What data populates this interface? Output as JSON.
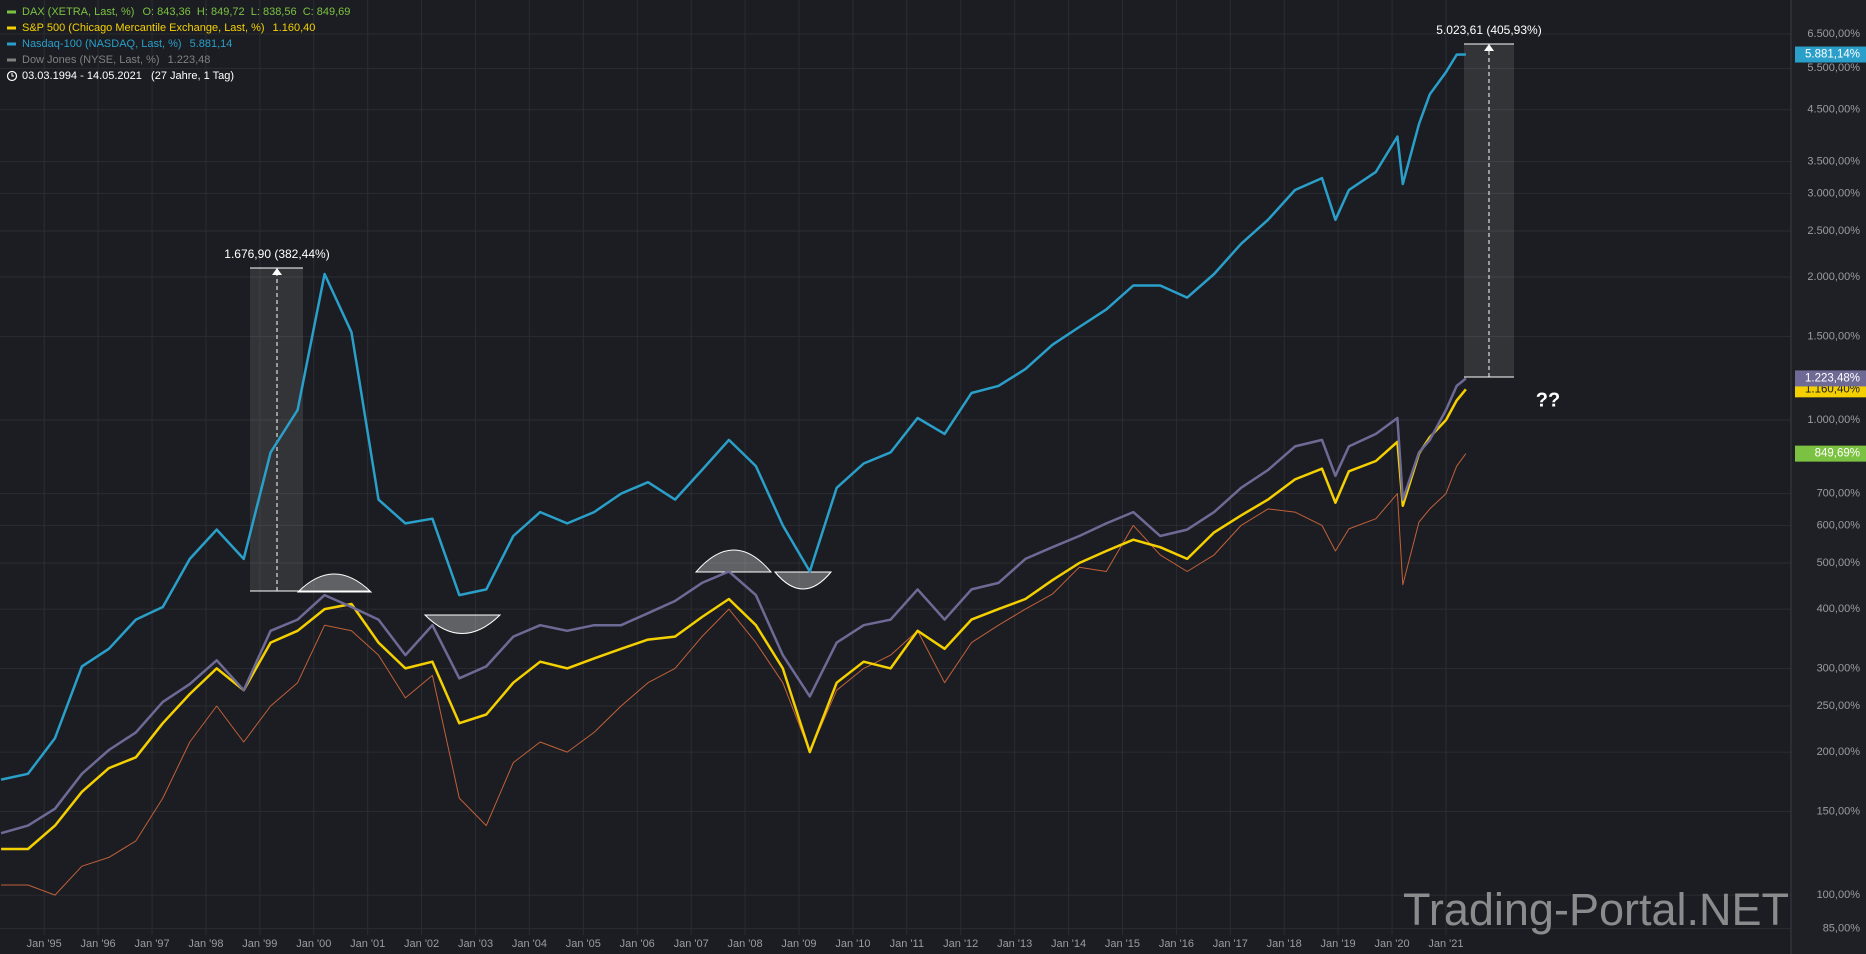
{
  "chart_data": {
    "type": "line",
    "log_scale": true,
    "grid": true,
    "x": [
      1994.2,
      1994.7,
      1995.2,
      1995.7,
      1996.2,
      1996.7,
      1997.2,
      1997.7,
      1998.2,
      1998.7,
      1999.2,
      1999.7,
      2000.2,
      2000.7,
      2001.2,
      2001.7,
      2002.2,
      2002.7,
      2003.2,
      2003.7,
      2004.2,
      2004.7,
      2005.2,
      2005.7,
      2006.2,
      2006.7,
      2007.2,
      2007.7,
      2008.2,
      2008.7,
      2009.2,
      2009.7,
      2010.2,
      2010.7,
      2011.2,
      2011.7,
      2012.2,
      2012.7,
      2013.2,
      2013.7,
      2014.2,
      2014.7,
      2015.2,
      2015.7,
      2016.2,
      2016.7,
      2017.2,
      2017.7,
      2018.2,
      2018.7,
      2018.95,
      2019.2,
      2019.7,
      2020.1,
      2020.2,
      2020.5,
      2020.7,
      2021.0,
      2021.2,
      2021.37
    ],
    "xlim": [
      1994.18,
      2027.4
    ],
    "xticks": [
      {
        "value": 1995,
        "label": "Jan '95"
      },
      {
        "value": 1996,
        "label": "Jan '96"
      },
      {
        "value": 1997,
        "label": "Jan '97"
      },
      {
        "value": 1998,
        "label": "Jan '98"
      },
      {
        "value": 1999,
        "label": "Jan '99"
      },
      {
        "value": 2000,
        "label": "Jan '00"
      },
      {
        "value": 2001,
        "label": "Jan '01"
      },
      {
        "value": 2002,
        "label": "Jan '02"
      },
      {
        "value": 2003,
        "label": "Jan '03"
      },
      {
        "value": 2004,
        "label": "Jan '04"
      },
      {
        "value": 2005,
        "label": "Jan '05"
      },
      {
        "value": 2006,
        "label": "Jan '06"
      },
      {
        "value": 2007,
        "label": "Jan '07"
      },
      {
        "value": 2008,
        "label": "Jan '08"
      },
      {
        "value": 2009,
        "label": "Jan '09"
      },
      {
        "value": 2010,
        "label": "Jan '10"
      },
      {
        "value": 2011,
        "label": "Jan '11"
      },
      {
        "value": 2012,
        "label": "Jan '12"
      },
      {
        "value": 2013,
        "label": "Jan '13"
      },
      {
        "value": 2014,
        "label": "Jan '14"
      },
      {
        "value": 2015,
        "label": "Jan '15"
      },
      {
        "value": 2016,
        "label": "Jan '16"
      },
      {
        "value": 2017,
        "label": "Jan '17"
      },
      {
        "value": 2018,
        "label": "Jan '18"
      },
      {
        "value": 2019,
        "label": "Jan '19"
      },
      {
        "value": 2020,
        "label": "Jan '20"
      },
      {
        "value": 2021,
        "label": "Jan '21"
      }
    ],
    "ylim": [
      82.4,
      7660
    ],
    "yticks": [
      {
        "value": 85,
        "label": "85,00%"
      },
      {
        "value": 100,
        "label": "100,00%"
      },
      {
        "value": 150,
        "label": "150,00%"
      },
      {
        "value": 200,
        "label": "200,00%"
      },
      {
        "value": 250,
        "label": "250,00%"
      },
      {
        "value": 300,
        "label": "300,00%"
      },
      {
        "value": 400,
        "label": "400,00%"
      },
      {
        "value": 500,
        "label": "500,00%"
      },
      {
        "value": 600,
        "label": "600,00%"
      },
      {
        "value": 700,
        "label": "700,00%"
      },
      {
        "value": 1000,
        "label": "1.000,00%"
      },
      {
        "value": 1500,
        "label": "1.500,00%"
      },
      {
        "value": 2000,
        "label": "2.000,00%"
      },
      {
        "value": 2500,
        "label": "2.500,00%"
      },
      {
        "value": 3000,
        "label": "3.000,00%"
      },
      {
        "value": 3500,
        "label": "3.500,00%"
      },
      {
        "value": 4500,
        "label": "4.500,00%"
      },
      {
        "value": 5500,
        "label": "5.500,00%"
      },
      {
        "value": 6500,
        "label": "6.500,00%"
      }
    ],
    "series": [
      {
        "name": "DAX (XETRA, Last, %)",
        "legend_info": "O: 843,36  H: 849,72  L: 838,56  C: 849,69",
        "color": "#c0603a",
        "legend_color": "#7cc242",
        "width": 1,
        "values": [
          105,
          105,
          100,
          115,
          120,
          130,
          160,
          210,
          250,
          210,
          250,
          280,
          370,
          360,
          320,
          260,
          290,
          160,
          140,
          190,
          210,
          200,
          220,
          250,
          280,
          300,
          350,
          400,
          340,
          280,
          200,
          270,
          300,
          320,
          360,
          280,
          340,
          370,
          400,
          430,
          490,
          480,
          600,
          520,
          480,
          520,
          600,
          650,
          640,
          600,
          530,
          590,
          620,
          700,
          450,
          610,
          650,
          700,
          800,
          849.69
        ],
        "value_labels": [
          null,
          null,
          null,
          null,
          null,
          null,
          null,
          null,
          null,
          null,
          null,
          null,
          null,
          null,
          null,
          null,
          null,
          null,
          null,
          null,
          null,
          null,
          null,
          null,
          null,
          null,
          null,
          null,
          null,
          null,
          null,
          null,
          null,
          null,
          null,
          null,
          null,
          null,
          null,
          null,
          null,
          null,
          null,
          null,
          null,
          null,
          null,
          null,
          null,
          null,
          null,
          null,
          null,
          null,
          null,
          null,
          null,
          null,
          null,
          "849,69%"
        ]
      },
      {
        "name": "S&P 500 (Chicago Mercantile Exchange, Last, %)",
        "legend_info": "1.160,40",
        "color": "#f5d000",
        "legend_color": "#f5d000",
        "width": 2.5,
        "values": [
          125,
          125,
          140,
          165,
          185,
          195,
          230,
          265,
          300,
          270,
          340,
          360,
          400,
          410,
          340,
          300,
          310,
          230,
          240,
          280,
          310,
          300,
          315,
          330,
          345,
          350,
          385,
          420,
          370,
          300,
          200,
          280,
          310,
          300,
          360,
          330,
          380,
          400,
          420,
          460,
          500,
          530,
          560,
          540,
          510,
          580,
          630,
          680,
          750,
          790,
          670,
          780,
          820,
          900,
          660,
          850,
          920,
          1000,
          1100,
          1160.4
        ],
        "value_labels": [
          null,
          null,
          null,
          null,
          null,
          null,
          null,
          null,
          null,
          null,
          null,
          null,
          null,
          null,
          null,
          null,
          null,
          null,
          null,
          null,
          null,
          null,
          null,
          null,
          null,
          null,
          null,
          null,
          null,
          null,
          null,
          null,
          null,
          null,
          null,
          null,
          null,
          null,
          null,
          null,
          null,
          null,
          null,
          null,
          null,
          null,
          null,
          null,
          null,
          null,
          null,
          null,
          null,
          null,
          null,
          null,
          null,
          null,
          null,
          "1.160,40%"
        ]
      },
      {
        "name": "Nasdaq-100 (NASDAQ, Last, %)",
        "legend_info": "5.881,14",
        "color": "#2a9fc9",
        "legend_color": "#2a9fc9",
        "width": 2.5,
        "values": [
          175,
          180,
          214,
          303,
          330,
          380,
          404,
          510,
          588,
          510,
          855,
          1050,
          2030,
          1530,
          680,
          606,
          620,
          428,
          440,
          570,
          640,
          606,
          640,
          700,
          740,
          680,
          785,
          908,
          800,
          600,
          480,
          720,
          810,
          855,
          1010,
          935,
          1140,
          1180,
          1280,
          1440,
          1570,
          1710,
          1920,
          1920,
          1810,
          2030,
          2350,
          2640,
          3050,
          3230,
          2640,
          3050,
          3330,
          3950,
          3140,
          4200,
          4850,
          5400,
          5880,
          5881.14
        ],
        "value_labels": [
          null,
          null,
          null,
          null,
          null,
          null,
          null,
          null,
          null,
          null,
          null,
          null,
          null,
          null,
          null,
          null,
          null,
          null,
          null,
          null,
          null,
          null,
          null,
          null,
          null,
          null,
          null,
          null,
          null,
          null,
          null,
          null,
          null,
          null,
          null,
          null,
          null,
          null,
          null,
          null,
          null,
          null,
          null,
          null,
          null,
          null,
          null,
          null,
          null,
          null,
          null,
          null,
          null,
          null,
          null,
          null,
          null,
          null,
          null,
          "5.881,14%"
        ]
      },
      {
        "name": "Dow Jones (NYSE, Last, %)",
        "legend_info": "1.223,48",
        "color": "#6e6a96",
        "legend_color": "#808080",
        "width": 2.5,
        "values": [
          135,
          140,
          152,
          180,
          202,
          220,
          255,
          278,
          312,
          270,
          360,
          380,
          428,
          404,
          380,
          320,
          370,
          286,
          303,
          350,
          370,
          360,
          370,
          370,
          392,
          416,
          454,
          480,
          428,
          320,
          262,
          340,
          370,
          380,
          440,
          380,
          440,
          454,
          510,
          540,
          570,
          606,
          640,
          570,
          588,
          640,
          720,
          785,
          880,
          908,
          763,
          880,
          935,
          1010,
          680,
          855,
          908,
          1050,
          1180,
          1223.48
        ],
        "value_labels": [
          null,
          null,
          null,
          null,
          null,
          null,
          null,
          null,
          null,
          null,
          null,
          null,
          null,
          null,
          null,
          null,
          null,
          null,
          null,
          null,
          null,
          null,
          null,
          null,
          null,
          null,
          null,
          null,
          null,
          null,
          null,
          null,
          null,
          null,
          null,
          null,
          null,
          null,
          null,
          null,
          null,
          null,
          null,
          null,
          null,
          null,
          null,
          null,
          null,
          null,
          null,
          null,
          null,
          null,
          null,
          null,
          null,
          null,
          null,
          "1.223,48%"
        ]
      }
    ],
    "range_info": "03.03.1994 - 14.05.2021   (27 Jahre, 1 Tag)",
    "measure_labels": [
      "1.676,90 (382,44%)",
      "5.023,61 (405,93%)"
    ],
    "note": "??",
    "watermark": "Trading-Portal.NET"
  }
}
